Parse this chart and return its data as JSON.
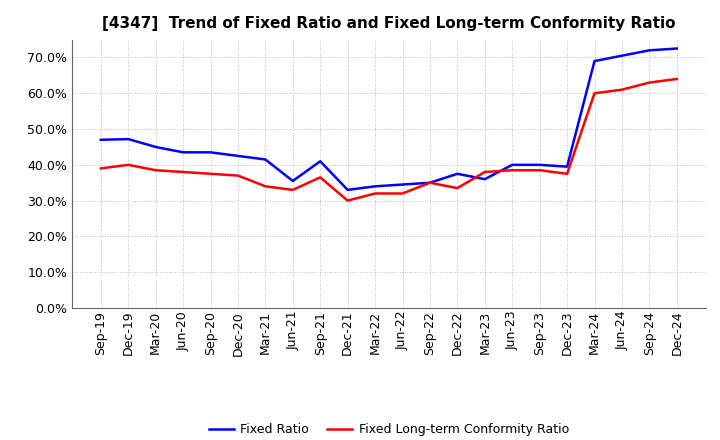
{
  "title": "[4347]  Trend of Fixed Ratio and Fixed Long-term Conformity Ratio",
  "x_labels": [
    "Sep-19",
    "Dec-19",
    "Mar-20",
    "Jun-20",
    "Sep-20",
    "Dec-20",
    "Mar-21",
    "Jun-21",
    "Sep-21",
    "Dec-21",
    "Mar-22",
    "Jun-22",
    "Sep-22",
    "Dec-22",
    "Mar-23",
    "Jun-23",
    "Sep-23",
    "Dec-23",
    "Mar-24",
    "Jun-24",
    "Sep-24",
    "Dec-24"
  ],
  "fixed_ratio": [
    0.47,
    0.472,
    0.45,
    0.435,
    0.435,
    0.425,
    0.415,
    0.355,
    0.41,
    0.33,
    0.34,
    0.345,
    0.35,
    0.375,
    0.36,
    0.4,
    0.4,
    0.395,
    0.69,
    0.705,
    0.72,
    0.725
  ],
  "fixed_lt_ratio": [
    0.39,
    0.4,
    0.385,
    0.38,
    0.375,
    0.37,
    0.34,
    0.33,
    0.365,
    0.3,
    0.32,
    0.32,
    0.35,
    0.335,
    0.38,
    0.385,
    0.385,
    0.375,
    0.6,
    0.61,
    0.63,
    0.64
  ],
  "fixed_ratio_color": "#0000FF",
  "fixed_lt_ratio_color": "#FF0000",
  "ylim": [
    0.0,
    0.75
  ],
  "yticks": [
    0.0,
    0.1,
    0.2,
    0.3,
    0.4,
    0.5,
    0.6,
    0.7
  ],
  "background_color": "#FFFFFF",
  "grid_color": "#AAAAAA",
  "legend_fixed": "Fixed Ratio",
  "legend_lt": "Fixed Long-term Conformity Ratio",
  "title_fontsize": 11,
  "tick_fontsize": 9,
  "legend_fontsize": 9,
  "line_width": 1.8
}
